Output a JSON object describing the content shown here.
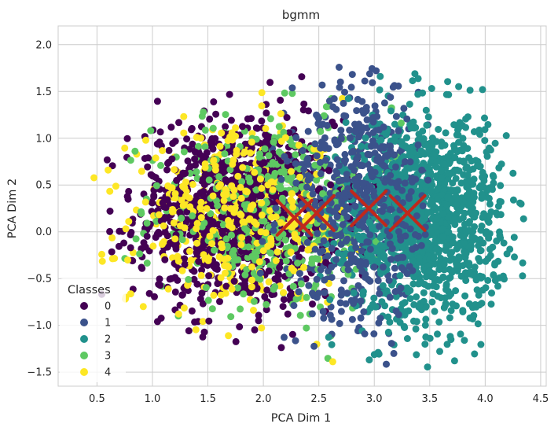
{
  "chart_data": {
    "type": "scatter",
    "title": "bgmm",
    "xlabel": "PCA Dim 1",
    "ylabel": "PCA Dim 2",
    "xlim": [
      0.15,
      4.55
    ],
    "ylim": [
      -1.65,
      2.2
    ],
    "xticks": [
      0.5,
      1.0,
      1.5,
      2.0,
      2.5,
      3.0,
      3.5,
      4.0,
      4.5
    ],
    "xtick_labels": [
      "0.5",
      "1.0",
      "1.5",
      "2.0",
      "2.5",
      "3.0",
      "3.5",
      "4.0",
      "4.5"
    ],
    "yticks": [
      -1.5,
      -1.0,
      -0.5,
      0.0,
      0.5,
      1.0,
      1.5,
      2.0
    ],
    "ytick_labels": [
      "−1.5",
      "−1.0",
      "−0.5",
      "0.0",
      "0.5",
      "1.0",
      "1.5",
      "2.0"
    ],
    "grid": true,
    "legend": {
      "title": "Classes",
      "position": "center-left"
    },
    "series": [
      {
        "name": "0",
        "color": "#440154",
        "center": [
          1.75,
          0.2
        ],
        "spread": [
          0.45,
          0.5
        ],
        "range_x": [
          0.45,
          3.1
        ],
        "count": 1100
      },
      {
        "name": "1",
        "color": "#3b528b",
        "center": [
          2.9,
          0.3
        ],
        "spread": [
          0.35,
          0.6
        ],
        "range_x": [
          1.9,
          3.5
        ],
        "count": 700
      },
      {
        "name": "2",
        "color": "#21918c",
        "center": [
          3.45,
          0.15
        ],
        "spread": [
          0.35,
          0.55
        ],
        "range_x": [
          2.5,
          4.35
        ],
        "count": 1300
      },
      {
        "name": "3",
        "color": "#5ec962",
        "center": [
          2.1,
          0.2
        ],
        "spread": [
          0.55,
          0.5
        ],
        "range_x": [
          0.7,
          3.3
        ],
        "count": 500
      },
      {
        "name": "4",
        "color": "#fde725",
        "center": [
          1.8,
          0.15
        ],
        "spread": [
          0.5,
          0.45
        ],
        "range_x": [
          0.3,
          3.0
        ],
        "count": 450
      }
    ],
    "centroids": {
      "marker": "x",
      "color": "#c0281c",
      "points": [
        [
          2.28,
          0.15
        ],
        [
          2.48,
          0.2
        ],
        [
          2.95,
          0.25
        ],
        [
          3.3,
          0.2
        ]
      ]
    }
  }
}
